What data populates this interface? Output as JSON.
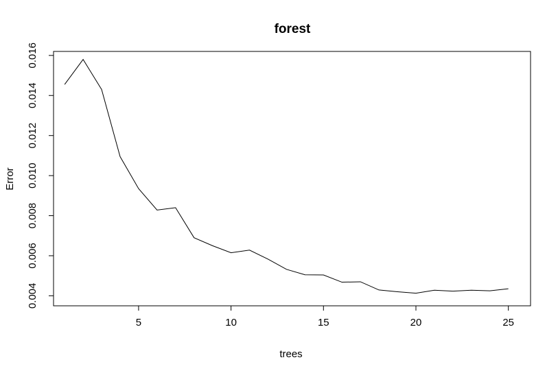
{
  "chart_data": {
    "type": "line",
    "title": "forest",
    "xlabel": "trees",
    "ylabel": "Error",
    "x": [
      1,
      2,
      3,
      4,
      5,
      6,
      7,
      8,
      9,
      10,
      11,
      12,
      13,
      14,
      15,
      16,
      17,
      18,
      19,
      20,
      21,
      22,
      23,
      24,
      25
    ],
    "series": [
      {
        "values": [
          0.01455,
          0.0158,
          0.0143,
          0.01095,
          0.00935,
          0.00828,
          0.0084,
          0.0069,
          0.0065,
          0.00615,
          0.00628,
          0.00583,
          0.00532,
          0.00505,
          0.00504,
          0.00468,
          0.0047,
          0.00429,
          0.0042,
          0.00413,
          0.00428,
          0.00423,
          0.00428,
          0.00425,
          0.00435
        ],
        "color": "#000000"
      }
    ],
    "xlim": [
      0.4,
      26.2
    ],
    "ylim": [
      0.0035,
      0.0162
    ],
    "xticks": [
      5,
      10,
      15,
      20,
      25
    ],
    "xtick_labels": [
      "5",
      "10",
      "15",
      "20",
      "25"
    ],
    "yticks": [
      0.004,
      0.006,
      0.008,
      0.01,
      0.012,
      0.014,
      0.016
    ],
    "ytick_labels": [
      "0.004",
      "0.006",
      "0.008",
      "0.010",
      "0.012",
      "0.014",
      "0.016"
    ],
    "grid": false,
    "legend": "none"
  }
}
